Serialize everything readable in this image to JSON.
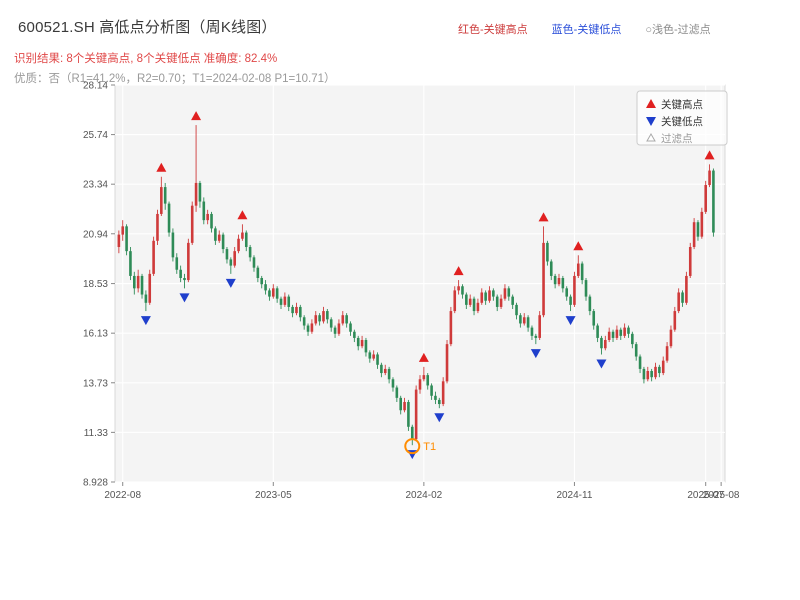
{
  "header": {
    "title": "600521.SH 高低点分析图（周K线图）",
    "legend_top": [
      {
        "label": "红色-关键高点",
        "color": "#cc3b3b"
      },
      {
        "label": "蓝色-关键低点",
        "color": "#2b4fd9"
      },
      {
        "label": "○浅色-过滤点",
        "color": "#8a8a8a"
      }
    ],
    "result_line": "识别结果: 8个关键高点, 8个关键低点  准确度: 82.4%",
    "quality_line": "优质：否（R1=41.2%，R2=0.70；T1=2024-02-08 P1=10.71）"
  },
  "chart_data": {
    "type": "candlestick",
    "period": "weekly",
    "symbol": "600521.SH",
    "up_color": "#cf3a3a",
    "down_color": "#2e8b57",
    "plot_bg": "#f4f4f4",
    "grid_color": "#ffffff",
    "axis_text_color": "#555555",
    "high_marker_color": "#e02020",
    "low_marker_color": "#1f3fcc",
    "filtered_marker_color": "#aaaaaa",
    "ylim": [
      8.928,
      28.14
    ],
    "xlim": [
      -1,
      157
    ],
    "y_ticks": [
      {
        "value": 8.928,
        "label": "8.928"
      },
      {
        "value": 11.33,
        "label": "11.33"
      },
      {
        "value": 13.73,
        "label": "13.73"
      },
      {
        "value": 16.13,
        "label": "16.13"
      },
      {
        "value": 18.53,
        "label": "18.53"
      },
      {
        "value": 20.94,
        "label": "20.94"
      },
      {
        "value": 23.34,
        "label": "23.34"
      },
      {
        "value": 25.74,
        "label": "25.74"
      },
      {
        "value": 28.14,
        "label": "28.14"
      }
    ],
    "x_ticks": [
      {
        "week": 1,
        "label": "2022-08"
      },
      {
        "week": 40,
        "label": "2023-05"
      },
      {
        "week": 79,
        "label": "2024-02"
      },
      {
        "week": 118,
        "label": "2024-11"
      },
      {
        "week": 152,
        "label": "2025-07"
      },
      {
        "week": 156,
        "label": "2025-08"
      }
    ],
    "legend_items": [
      {
        "label": "关键高点",
        "marker": "triangle-up",
        "color": "#e02020"
      },
      {
        "label": "关键低点",
        "marker": "triangle-down",
        "color": "#1f3fcc"
      },
      {
        "label": "过滤点",
        "marker": "triangle-up-hollow",
        "color": "#aaaaaa"
      }
    ],
    "candles": [
      [
        20.3,
        21.1,
        20.0,
        20.9
      ],
      [
        20.9,
        21.6,
        20.6,
        21.3
      ],
      [
        21.3,
        21.4,
        19.9,
        20.1
      ],
      [
        20.1,
        20.3,
        18.7,
        18.9
      ],
      [
        18.9,
        19.1,
        18.0,
        18.3
      ],
      [
        18.3,
        19.2,
        18.1,
        18.9
      ],
      [
        18.9,
        19.0,
        17.8,
        18.0
      ],
      [
        18.0,
        18.2,
        17.2,
        17.6
      ],
      [
        17.6,
        19.2,
        17.5,
        19.0
      ],
      [
        19.0,
        20.8,
        18.9,
        20.6
      ],
      [
        20.6,
        22.1,
        20.4,
        21.9
      ],
      [
        21.9,
        23.7,
        21.8,
        23.2
      ],
      [
        23.2,
        23.4,
        22.1,
        22.4
      ],
      [
        22.4,
        22.5,
        20.8,
        21.0
      ],
      [
        21.0,
        21.2,
        19.6,
        19.8
      ],
      [
        19.8,
        20.0,
        19.0,
        19.2
      ],
      [
        19.2,
        19.4,
        18.6,
        18.8
      ],
      [
        18.8,
        19.0,
        18.3,
        18.7
      ],
      [
        18.7,
        20.7,
        18.6,
        20.5
      ],
      [
        20.5,
        22.5,
        20.4,
        22.3
      ],
      [
        22.3,
        26.2,
        22.0,
        23.4
      ],
      [
        23.4,
        23.5,
        22.2,
        22.5
      ],
      [
        22.5,
        22.7,
        21.4,
        21.6
      ],
      [
        21.6,
        22.1,
        21.4,
        21.9
      ],
      [
        21.9,
        22.0,
        21.0,
        21.2
      ],
      [
        21.2,
        21.3,
        20.4,
        20.6
      ],
      [
        20.6,
        21.1,
        20.5,
        20.9
      ],
      [
        20.9,
        21.0,
        20.0,
        20.2
      ],
      [
        20.2,
        20.3,
        19.5,
        19.7
      ],
      [
        19.7,
        19.8,
        19.0,
        19.4
      ],
      [
        19.4,
        20.3,
        19.3,
        20.1
      ],
      [
        20.1,
        20.9,
        20.0,
        20.7
      ],
      [
        20.7,
        21.4,
        20.6,
        21.0
      ],
      [
        21.0,
        21.1,
        20.1,
        20.3
      ],
      [
        20.3,
        20.4,
        19.6,
        19.8
      ],
      [
        19.8,
        19.9,
        19.1,
        19.3
      ],
      [
        19.3,
        19.4,
        18.6,
        18.8
      ],
      [
        18.8,
        18.9,
        18.3,
        18.5
      ],
      [
        18.5,
        18.7,
        18.0,
        18.2
      ],
      [
        18.2,
        18.3,
        17.7,
        17.9
      ],
      [
        17.9,
        18.5,
        17.8,
        18.3
      ],
      [
        18.3,
        18.4,
        17.6,
        17.8
      ],
      [
        17.8,
        17.9,
        17.3,
        17.5
      ],
      [
        17.5,
        18.1,
        17.4,
        17.9
      ],
      [
        17.9,
        18.0,
        17.2,
        17.4
      ],
      [
        17.4,
        17.5,
        16.9,
        17.1
      ],
      [
        17.1,
        17.6,
        17.0,
        17.4
      ],
      [
        17.4,
        17.5,
        16.7,
        16.9
      ],
      [
        16.9,
        17.0,
        16.3,
        16.5
      ],
      [
        16.5,
        16.6,
        16.0,
        16.2
      ],
      [
        16.2,
        16.8,
        16.1,
        16.6
      ],
      [
        16.6,
        17.2,
        16.5,
        17.0
      ],
      [
        17.0,
        17.1,
        16.5,
        16.7
      ],
      [
        16.7,
        17.4,
        16.6,
        17.2
      ],
      [
        17.2,
        17.3,
        16.6,
        16.8
      ],
      [
        16.8,
        16.9,
        16.2,
        16.4
      ],
      [
        16.4,
        16.5,
        15.9,
        16.1
      ],
      [
        16.1,
        16.8,
        16.0,
        16.6
      ],
      [
        16.6,
        17.2,
        16.5,
        17.0
      ],
      [
        17.0,
        17.1,
        16.4,
        16.6
      ],
      [
        16.6,
        16.7,
        16.0,
        16.2
      ],
      [
        16.2,
        16.3,
        15.7,
        15.9
      ],
      [
        15.9,
        16.0,
        15.3,
        15.5
      ],
      [
        15.5,
        16.0,
        15.4,
        15.8
      ],
      [
        15.8,
        15.9,
        15.0,
        15.2
      ],
      [
        15.2,
        15.3,
        14.7,
        14.9
      ],
      [
        14.9,
        15.3,
        14.8,
        15.1
      ],
      [
        15.1,
        15.2,
        14.4,
        14.6
      ],
      [
        14.6,
        14.7,
        14.0,
        14.2
      ],
      [
        14.2,
        14.6,
        14.1,
        14.4
      ],
      [
        14.4,
        14.5,
        13.7,
        13.9
      ],
      [
        13.9,
        14.0,
        13.3,
        13.5
      ],
      [
        13.5,
        13.6,
        12.8,
        13.0
      ],
      [
        13.0,
        13.1,
        12.2,
        12.4
      ],
      [
        12.4,
        13.0,
        12.3,
        12.8
      ],
      [
        12.8,
        12.9,
        11.4,
        11.6
      ],
      [
        11.6,
        11.7,
        10.71,
        11.0
      ],
      [
        11.0,
        13.6,
        10.9,
        13.4
      ],
      [
        13.4,
        14.1,
        13.2,
        13.9
      ],
      [
        13.9,
        14.5,
        13.8,
        14.1
      ],
      [
        14.1,
        14.2,
        13.4,
        13.6
      ],
      [
        13.6,
        13.7,
        12.9,
        13.1
      ],
      [
        13.1,
        13.3,
        12.7,
        12.9
      ],
      [
        12.9,
        13.0,
        12.5,
        12.7
      ],
      [
        12.7,
        14.0,
        12.6,
        13.8
      ],
      [
        13.8,
        15.8,
        13.7,
        15.6
      ],
      [
        15.6,
        17.4,
        15.5,
        17.2
      ],
      [
        17.2,
        18.4,
        17.1,
        18.2
      ],
      [
        18.2,
        18.7,
        18.0,
        18.4
      ],
      [
        18.4,
        18.5,
        17.8,
        18.0
      ],
      [
        18.0,
        18.1,
        17.3,
        17.5
      ],
      [
        17.5,
        18.0,
        17.4,
        17.8
      ],
      [
        17.8,
        17.9,
        17.0,
        17.2
      ],
      [
        17.2,
        17.8,
        17.1,
        17.6
      ],
      [
        17.6,
        18.3,
        17.5,
        18.1
      ],
      [
        18.1,
        18.2,
        17.5,
        17.7
      ],
      [
        17.7,
        18.4,
        17.6,
        18.2
      ],
      [
        18.2,
        18.3,
        17.7,
        17.9
      ],
      [
        17.9,
        18.0,
        17.2,
        17.4
      ],
      [
        17.4,
        18.0,
        17.3,
        17.8
      ],
      [
        17.8,
        18.5,
        17.7,
        18.3
      ],
      [
        18.3,
        18.4,
        17.7,
        17.9
      ],
      [
        17.9,
        18.0,
        17.3,
        17.5
      ],
      [
        17.5,
        17.6,
        16.8,
        17.0
      ],
      [
        17.0,
        17.1,
        16.4,
        16.6
      ],
      [
        16.6,
        17.1,
        16.5,
        16.9
      ],
      [
        16.9,
        17.0,
        16.2,
        16.4
      ],
      [
        16.4,
        16.5,
        15.8,
        16.0
      ],
      [
        16.0,
        16.1,
        15.6,
        15.9
      ],
      [
        15.9,
        17.2,
        15.8,
        17.0
      ],
      [
        17.0,
        21.3,
        16.9,
        20.5
      ],
      [
        20.5,
        20.6,
        19.4,
        19.6
      ],
      [
        19.6,
        19.7,
        18.7,
        18.9
      ],
      [
        18.9,
        19.0,
        18.3,
        18.5
      ],
      [
        18.5,
        19.0,
        18.4,
        18.8
      ],
      [
        18.8,
        18.9,
        18.1,
        18.3
      ],
      [
        18.3,
        18.4,
        17.7,
        17.9
      ],
      [
        17.9,
        18.0,
        17.2,
        17.5
      ],
      [
        17.5,
        19.1,
        17.4,
        18.9
      ],
      [
        18.9,
        19.9,
        18.8,
        19.5
      ],
      [
        19.5,
        19.6,
        18.5,
        18.7
      ],
      [
        18.7,
        18.8,
        17.7,
        17.9
      ],
      [
        17.9,
        18.0,
        17.0,
        17.2
      ],
      [
        17.2,
        17.3,
        16.3,
        16.5
      ],
      [
        16.5,
        16.6,
        15.7,
        15.9
      ],
      [
        15.9,
        16.0,
        15.1,
        15.4
      ],
      [
        15.4,
        16.0,
        15.3,
        15.8
      ],
      [
        15.8,
        16.4,
        15.7,
        16.2
      ],
      [
        16.2,
        16.3,
        15.7,
        15.9
      ],
      [
        15.9,
        16.5,
        15.8,
        16.3
      ],
      [
        16.3,
        16.4,
        15.8,
        16.0
      ],
      [
        16.0,
        16.6,
        15.9,
        16.4
      ],
      [
        16.4,
        16.5,
        15.9,
        16.1
      ],
      [
        16.1,
        16.2,
        15.4,
        15.6
      ],
      [
        15.6,
        15.7,
        14.8,
        15.0
      ],
      [
        15.0,
        15.1,
        14.2,
        14.4
      ],
      [
        14.4,
        14.5,
        13.7,
        13.9
      ],
      [
        13.9,
        14.5,
        13.8,
        14.3
      ],
      [
        14.3,
        14.4,
        13.8,
        14.0
      ],
      [
        14.0,
        14.7,
        13.9,
        14.5
      ],
      [
        14.5,
        14.6,
        14.0,
        14.2
      ],
      [
        14.2,
        15.0,
        14.1,
        14.8
      ],
      [
        14.8,
        15.7,
        14.7,
        15.5
      ],
      [
        15.5,
        16.5,
        15.4,
        16.3
      ],
      [
        16.3,
        17.4,
        16.2,
        17.2
      ],
      [
        17.2,
        18.3,
        17.1,
        18.1
      ],
      [
        18.1,
        18.2,
        17.4,
        17.6
      ],
      [
        17.6,
        19.1,
        17.5,
        18.9
      ],
      [
        18.9,
        20.5,
        18.8,
        20.3
      ],
      [
        20.3,
        21.7,
        20.2,
        21.5
      ],
      [
        21.5,
        21.6,
        20.6,
        20.8
      ],
      [
        20.8,
        22.2,
        20.7,
        22.0
      ],
      [
        22.0,
        23.5,
        21.9,
        23.3
      ],
      [
        23.3,
        24.3,
        23.2,
        24.0
      ],
      [
        24.0,
        24.1,
        20.8,
        21.0
      ]
    ],
    "key_highs": [
      {
        "week": 11,
        "price": 23.7
      },
      {
        "week": 20,
        "price": 26.2
      },
      {
        "week": 32,
        "price": 21.4
      },
      {
        "week": 79,
        "price": 14.5
      },
      {
        "week": 88,
        "price": 18.7
      },
      {
        "week": 110,
        "price": 21.3
      },
      {
        "week": 119,
        "price": 19.9
      },
      {
        "week": 153,
        "price": 24.3
      }
    ],
    "key_lows": [
      {
        "week": 7,
        "price": 17.2
      },
      {
        "week": 17,
        "price": 18.3
      },
      {
        "week": 29,
        "price": 19.0
      },
      {
        "week": 76,
        "price": 10.71
      },
      {
        "week": 83,
        "price": 12.5
      },
      {
        "week": 108,
        "price": 15.6
      },
      {
        "week": 117,
        "price": 17.2
      },
      {
        "week": 125,
        "price": 15.1
      }
    ],
    "t1_annotation": {
      "week": 76,
      "price": 10.71,
      "label": "T1",
      "color": "#ff8c00"
    }
  }
}
